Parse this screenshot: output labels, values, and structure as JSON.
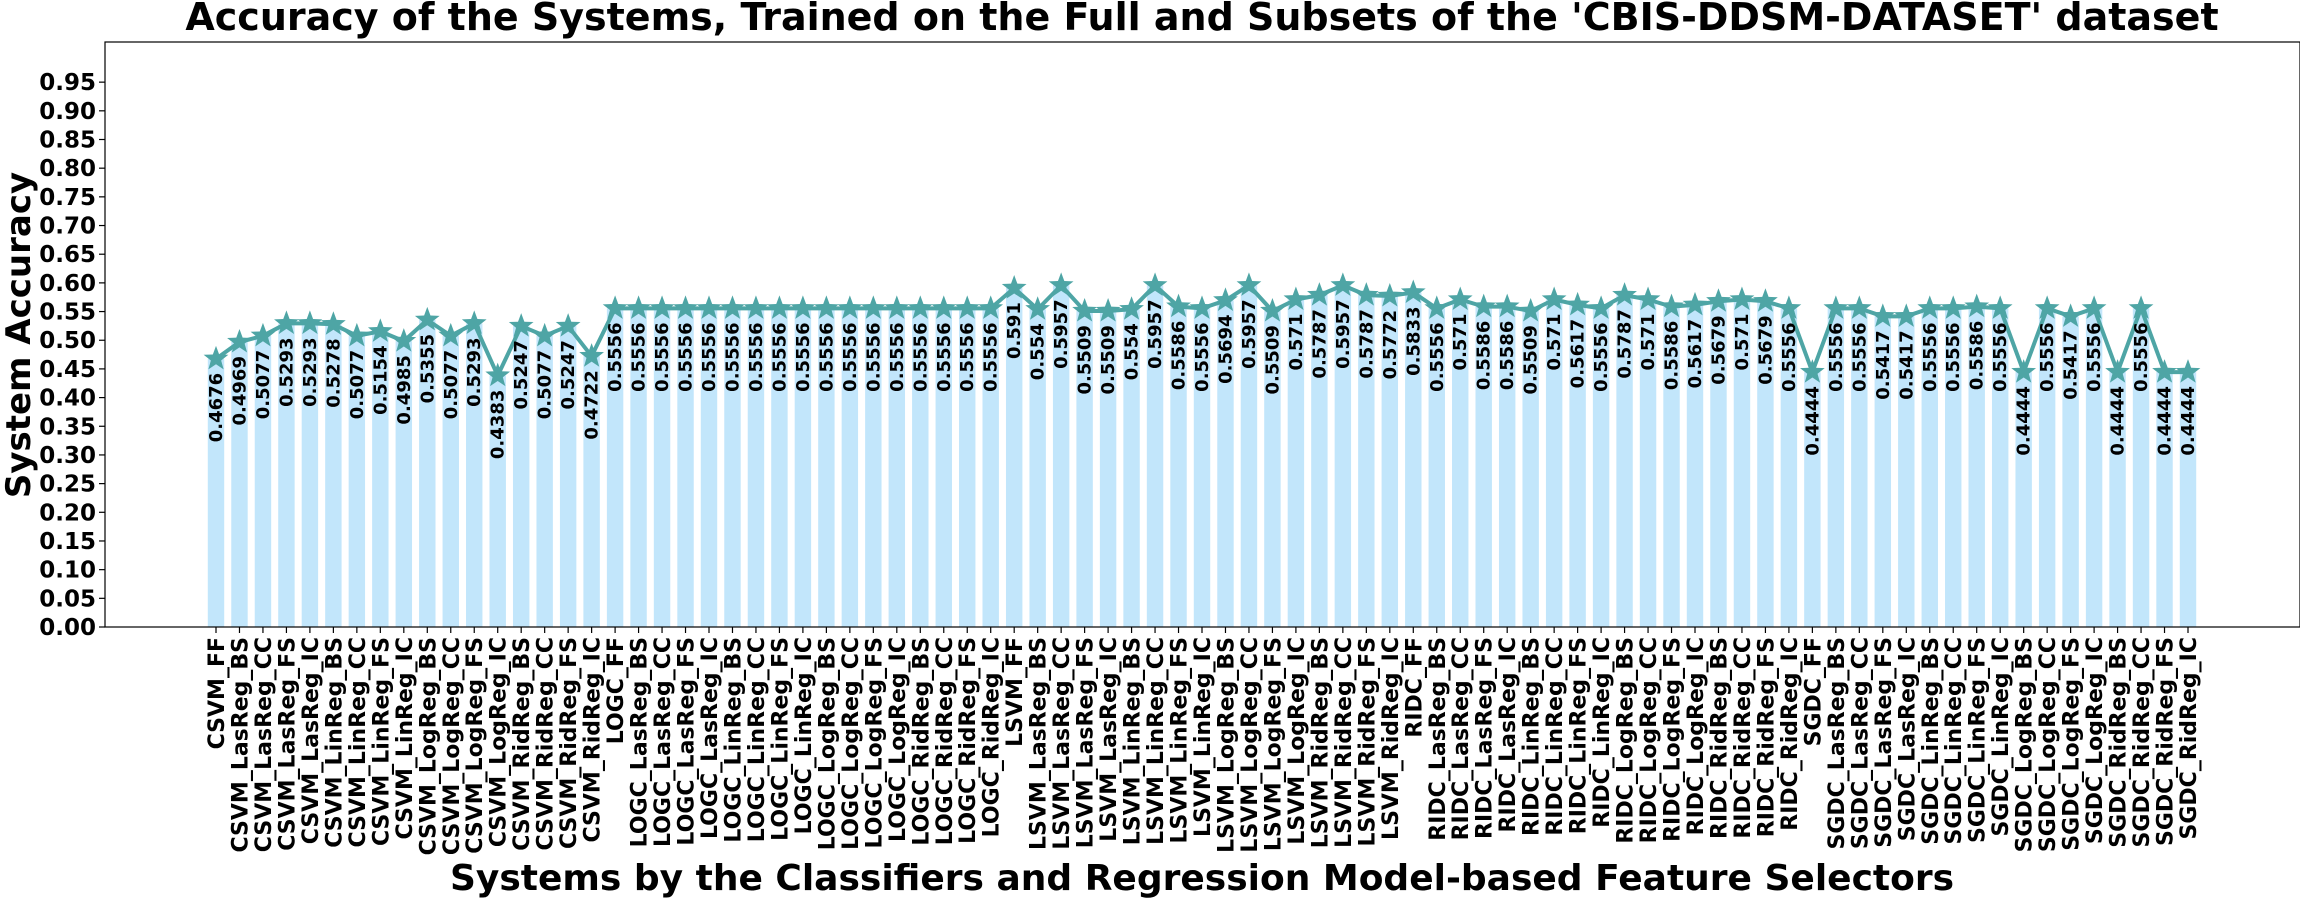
{
  "chart_data": {
    "type": "bar",
    "title": "Accuracy of the Systems, Trained on the Full and Subsets of the 'CBIS-DDSM-DATASET' dataset",
    "xlabel": "Systems by the Classifiers and Regression Model-based Feature Selectors",
    "ylabel": "System Accuracy",
    "ylim": [
      0,
      1.02
    ],
    "yticks": [
      "0.00",
      "0.05",
      "0.10",
      "0.15",
      "0.20",
      "0.25",
      "0.30",
      "0.35",
      "0.40",
      "0.45",
      "0.50",
      "0.55",
      "0.60",
      "0.65",
      "0.70",
      "0.75",
      "0.80",
      "0.85",
      "0.90",
      "0.95"
    ],
    "grid": false,
    "bar_color": "#c2e6fb",
    "line_color": "#4ea5a5",
    "marker": "star",
    "categories": [
      "CSVM_FF",
      "CSVM_LasReg_BS",
      "CSVM_LasReg_CC",
      "CSVM_LasReg_FS",
      "CSVM_LasReg_IC",
      "CSVM_LinReg_BS",
      "CSVM_LinReg_CC",
      "CSVM_LinReg_FS",
      "CSVM_LinReg_IC",
      "CSVM_LogReg_BS",
      "CSVM_LogReg_CC",
      "CSVM_LogReg_FS",
      "CSVM_LogReg_IC",
      "CSVM_RidReg_BS",
      "CSVM_RidReg_CC",
      "CSVM_RidReg_FS",
      "CSVM_RidReg_IC",
      "LOGC_FF",
      "LOGC_LasReg_BS",
      "LOGC_LasReg_CC",
      "LOGC_LasReg_FS",
      "LOGC_LasReg_IC",
      "LOGC_LinReg_BS",
      "LOGC_LinReg_CC",
      "LOGC_LinReg_FS",
      "LOGC_LinReg_IC",
      "LOGC_LogReg_BS",
      "LOGC_LogReg_CC",
      "LOGC_LogReg_FS",
      "LOGC_LogReg_IC",
      "LOGC_RidReg_BS",
      "LOGC_RidReg_CC",
      "LOGC_RidReg_FS",
      "LOGC_RidReg_IC",
      "LSVM_FF",
      "LSVM_LasReg_BS",
      "LSVM_LasReg_CC",
      "LSVM_LasReg_FS",
      "LSVM_LasReg_IC",
      "LSVM_LinReg_BS",
      "LSVM_LinReg_CC",
      "LSVM_LinReg_FS",
      "LSVM_LinReg_IC",
      "LSVM_LogReg_BS",
      "LSVM_LogReg_CC",
      "LSVM_LogReg_FS",
      "LSVM_LogReg_IC",
      "LSVM_RidReg_BS",
      "LSVM_RidReg_CC",
      "LSVM_RidReg_FS",
      "LSVM_RidReg_IC",
      "RIDC_FF",
      "RIDC_LasReg_BS",
      "RIDC_LasReg_CC",
      "RIDC_LasReg_FS",
      "RIDC_LasReg_IC",
      "RIDC_LinReg_BS",
      "RIDC_LinReg_CC",
      "RIDC_LinReg_FS",
      "RIDC_LinReg_IC",
      "RIDC_LogReg_BS",
      "RIDC_LogReg_CC",
      "RIDC_LogReg_FS",
      "RIDC_LogReg_IC",
      "RIDC_RidReg_BS",
      "RIDC_RidReg_CC",
      "RIDC_RidReg_FS",
      "RIDC_RidReg_IC",
      "SGDC_FF",
      "SGDC_LasReg_BS",
      "SGDC_LasReg_CC",
      "SGDC_LasReg_FS",
      "SGDC_LasReg_IC",
      "SGDC_LinReg_BS",
      "SGDC_LinReg_CC",
      "SGDC_LinReg_FS",
      "SGDC_LinReg_IC",
      "SGDC_LogReg_BS",
      "SGDC_LogReg_CC",
      "SGDC_LogReg_FS",
      "SGDC_LogReg_IC",
      "SGDC_RidReg_BS",
      "SGDC_RidReg_CC",
      "SGDC_RidReg_FS",
      "SGDC_RidReg_IC"
    ],
    "values": [
      0.4676,
      0.4969,
      0.5077,
      0.5293,
      0.5293,
      0.5278,
      0.5077,
      0.5154,
      0.4985,
      0.5355,
      0.5077,
      0.5293,
      0.4383,
      0.5247,
      0.5077,
      0.5247,
      0.4722,
      0.5556,
      0.5556,
      0.5556,
      0.5556,
      0.5556,
      0.5556,
      0.5556,
      0.5556,
      0.5556,
      0.5556,
      0.5556,
      0.5556,
      0.5556,
      0.5556,
      0.5556,
      0.5556,
      0.5556,
      0.591,
      0.554,
      0.5957,
      0.5509,
      0.5509,
      0.554,
      0.5957,
      0.5586,
      0.5556,
      0.5694,
      0.5957,
      0.5509,
      0.571,
      0.5787,
      0.5957,
      0.5787,
      0.5772,
      0.5833,
      0.5556,
      0.571,
      0.5586,
      0.5586,
      0.5509,
      0.571,
      0.5617,
      0.5556,
      0.5787,
      0.571,
      0.5586,
      0.5617,
      0.5679,
      0.571,
      0.5679,
      0.5556,
      0.4444,
      0.5556,
      0.5556,
      0.5417,
      0.5417,
      0.5556,
      0.5556,
      0.5586,
      0.5556,
      0.4444,
      0.5556,
      0.5417,
      0.5556,
      0.4444,
      0.5556,
      0.4444,
      0.4444
    ]
  }
}
